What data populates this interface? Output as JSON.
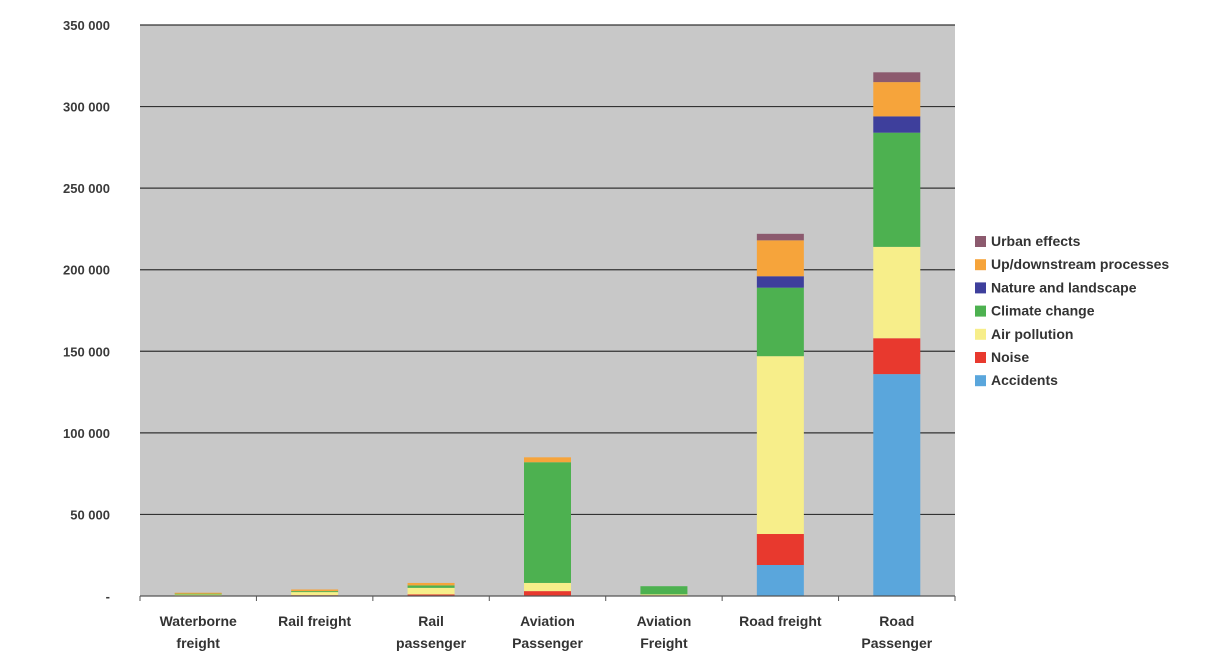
{
  "chart_data": {
    "type": "bar",
    "stacked": true,
    "categories": [
      "Waterborne freight",
      "Rail freight",
      "Rail passenger",
      "Aviation Passenger",
      "Aviation Freight",
      "Road freight",
      "Road Passenger"
    ],
    "series": [
      {
        "name": "Accidents",
        "color": "#5aa6dc",
        "values": [
          0,
          0,
          0,
          0,
          0,
          19000,
          136000
        ]
      },
      {
        "name": "Noise",
        "color": "#e8392e",
        "values": [
          0,
          500,
          1000,
          3000,
          500,
          19000,
          22000
        ]
      },
      {
        "name": "Air pollution",
        "color": "#f7ee8a",
        "values": [
          1000,
          2000,
          4000,
          5000,
          500,
          109000,
          56000
        ]
      },
      {
        "name": "Climate change",
        "color": "#4db150",
        "values": [
          500,
          500,
          1500,
          74000,
          5000,
          42000,
          70000
        ]
      },
      {
        "name": "Nature and landscape",
        "color": "#3e3f9c",
        "values": [
          0,
          0,
          0,
          0,
          0,
          7000,
          10000
        ]
      },
      {
        "name": "Up/downstream processes",
        "color": "#f6a43b",
        "values": [
          500,
          1000,
          1500,
          3000,
          0,
          22000,
          21000
        ]
      },
      {
        "name": "Urban effects",
        "color": "#8c5a6e",
        "values": [
          0,
          0,
          0,
          0,
          0,
          4000,
          6000
        ]
      }
    ],
    "y_ticks": [
      "350 000",
      "300 000",
      "250 000",
      "200 000",
      "150 000",
      "100 000",
      "50 000",
      "-"
    ],
    "ylim": [
      0,
      350000
    ],
    "grid": true,
    "legend_position": "right",
    "legend_order": [
      "Urban effects",
      "Up/downstream processes",
      "Nature and landscape",
      "Climate change",
      "Air pollution",
      "Noise",
      "Accidents"
    ],
    "plot_background": "#c8c8c8",
    "gridline_color": "#333333"
  }
}
